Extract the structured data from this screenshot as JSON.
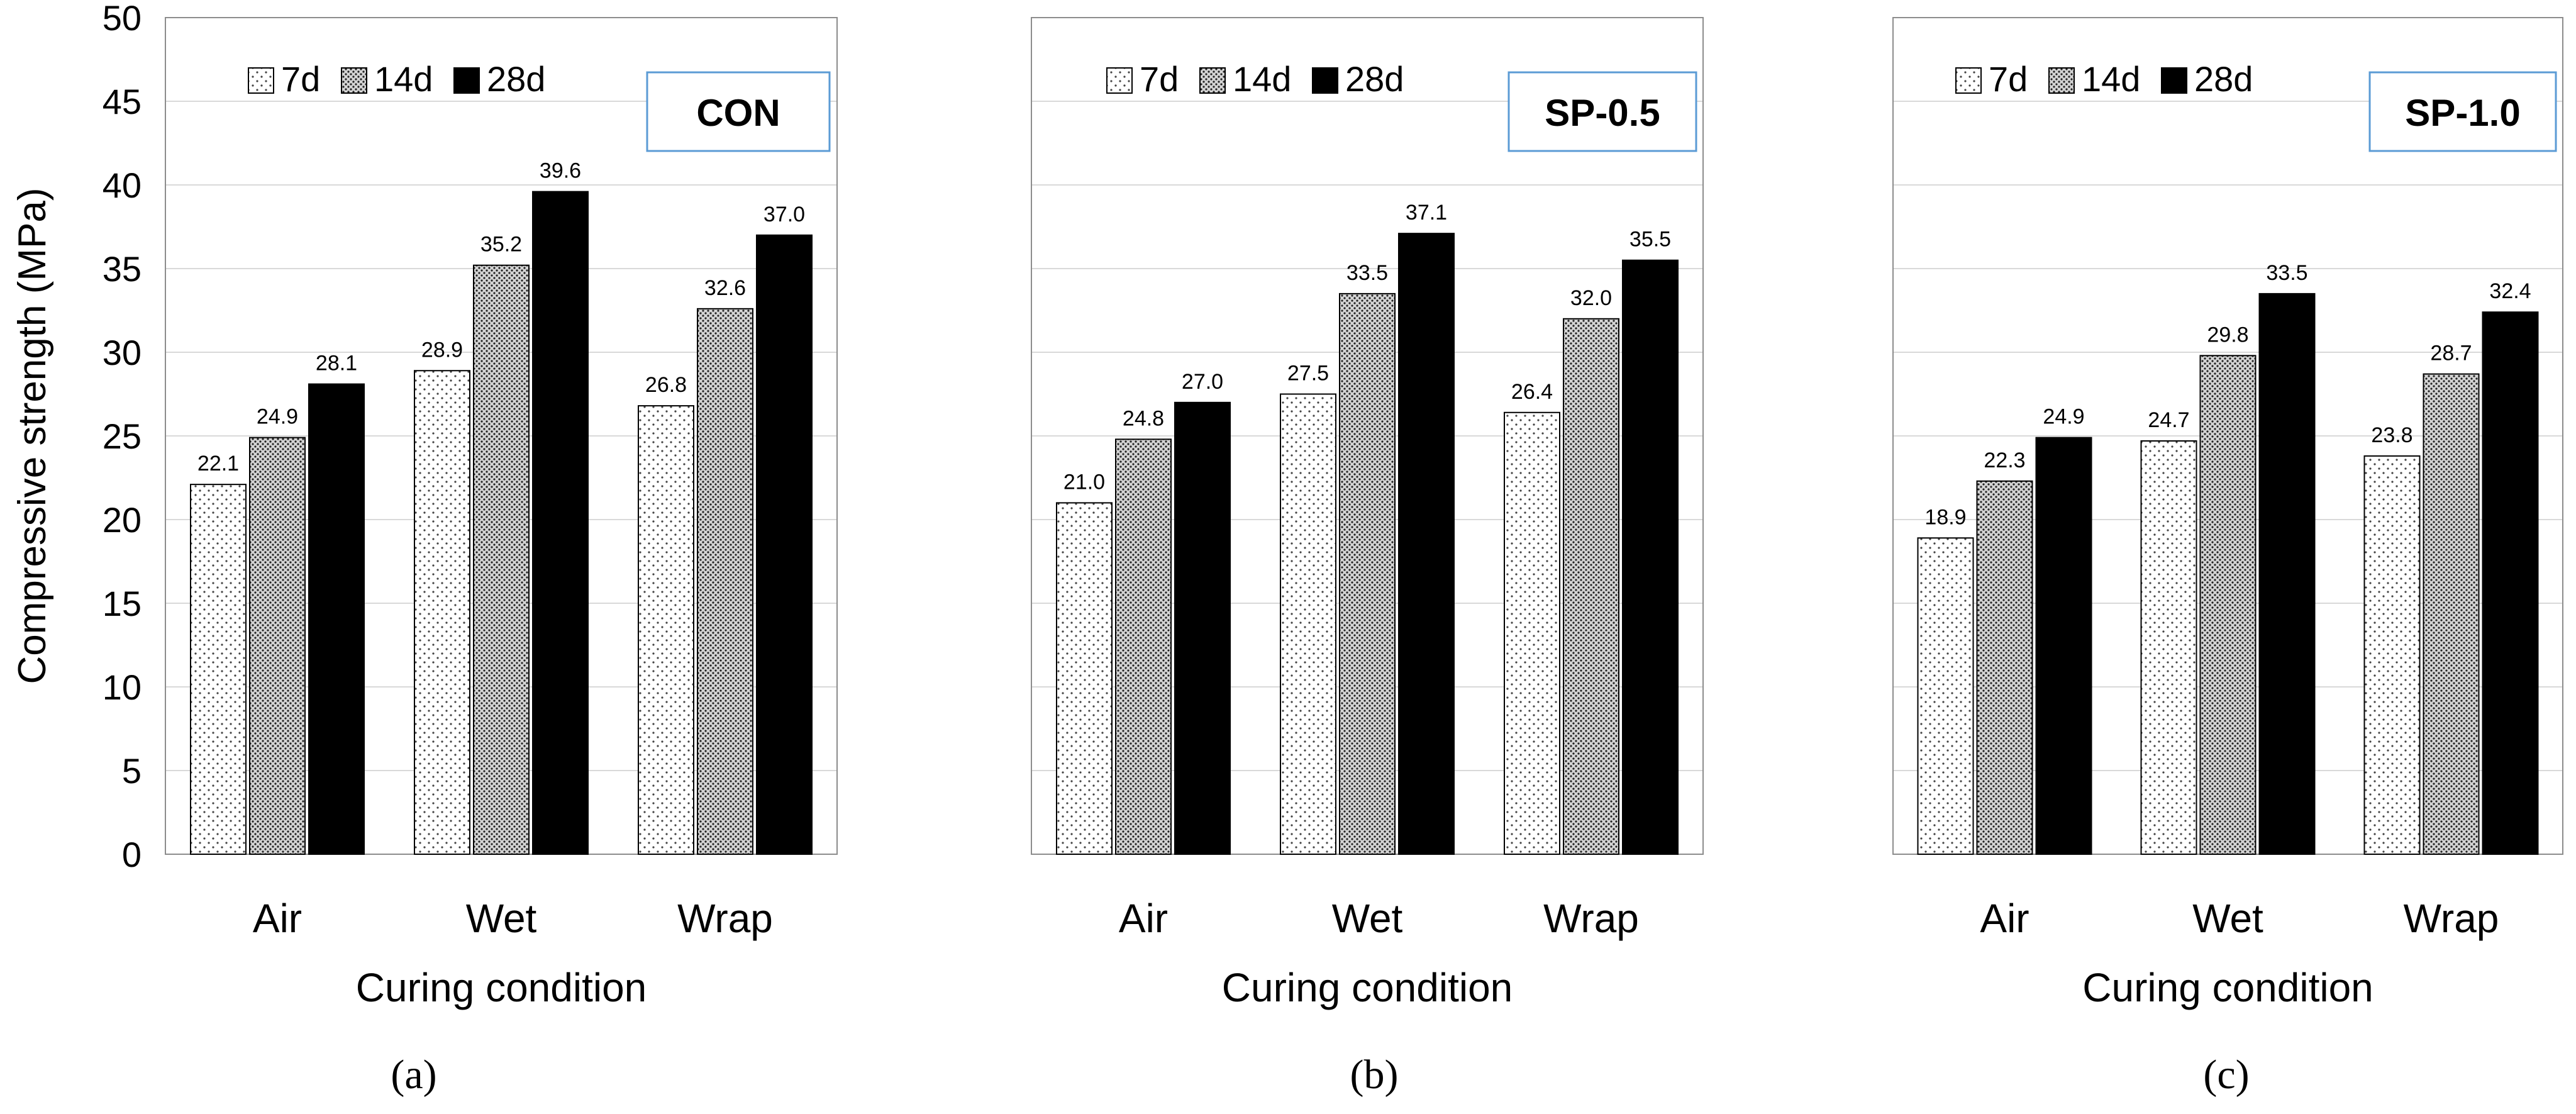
{
  "figure": {
    "y_axis_label": "Compressive strength (MPa)",
    "x_axis_label": "Curing condition"
  },
  "chart_data": [
    {
      "type": "bar",
      "panel": "a",
      "caption": "(a)",
      "label_box": "CON",
      "title": "CON",
      "xlabel": "Curing condition",
      "ylabel": "Compressive strength (MPa)",
      "ylim": [
        0,
        50
      ],
      "yticks": [
        0,
        5,
        10,
        15,
        20,
        25,
        30,
        35,
        40,
        45,
        50
      ],
      "grid": true,
      "legend_position": "top-left",
      "categories": [
        "Air",
        "Wet",
        "Wrap"
      ],
      "series": [
        {
          "name": "7d",
          "pattern": "dots",
          "values": [
            22.1,
            28.9,
            26.8
          ],
          "labels": [
            "22.1",
            "28.9",
            "26.8"
          ]
        },
        {
          "name": "14d",
          "pattern": "dense-dots",
          "values": [
            24.9,
            35.2,
            32.6
          ],
          "labels": [
            "24.9",
            "35.2",
            "32.6"
          ]
        },
        {
          "name": "28d",
          "pattern": "solid",
          "values": [
            28.1,
            39.6,
            37.0
          ],
          "labels": [
            "28.1",
            "39.6",
            "37.0"
          ]
        }
      ]
    },
    {
      "type": "bar",
      "panel": "b",
      "caption": "(b)",
      "label_box": "SP-0.5",
      "title": "SP-0.5",
      "xlabel": "Curing condition",
      "ylim": [
        0,
        50
      ],
      "grid": true,
      "legend_position": "top-left",
      "categories": [
        "Air",
        "Wet",
        "Wrap"
      ],
      "series": [
        {
          "name": "7d",
          "pattern": "dots",
          "values": [
            21.0,
            27.5,
            26.4
          ],
          "labels": [
            "21.0",
            "27.5",
            "26.4"
          ]
        },
        {
          "name": "14d",
          "pattern": "dense-dots",
          "values": [
            24.8,
            33.5,
            32.0
          ],
          "labels": [
            "24.8",
            "33.5",
            "32.0"
          ]
        },
        {
          "name": "28d",
          "pattern": "solid",
          "values": [
            27.0,
            37.1,
            35.5
          ],
          "labels": [
            "27.0",
            "37.1",
            "35.5"
          ]
        }
      ]
    },
    {
      "type": "bar",
      "panel": "c",
      "caption": "(c)",
      "label_box": "SP-1.0",
      "title": "SP-1.0",
      "xlabel": "Curing condition",
      "ylim": [
        0,
        50
      ],
      "grid": true,
      "legend_position": "top-left",
      "categories": [
        "Air",
        "Wet",
        "Wrap"
      ],
      "series": [
        {
          "name": "7d",
          "pattern": "dots",
          "values": [
            18.9,
            24.7,
            23.8
          ],
          "labels": [
            "18.9",
            "24.7",
            "23.8"
          ]
        },
        {
          "name": "14d",
          "pattern": "dense-dots",
          "values": [
            22.3,
            29.8,
            28.7
          ],
          "labels": [
            "22.3",
            "29.8",
            "28.7"
          ]
        },
        {
          "name": "28d",
          "pattern": "solid",
          "values": [
            24.9,
            33.5,
            32.4
          ],
          "labels": [
            "24.9",
            "33.5",
            "32.4"
          ]
        }
      ]
    }
  ]
}
